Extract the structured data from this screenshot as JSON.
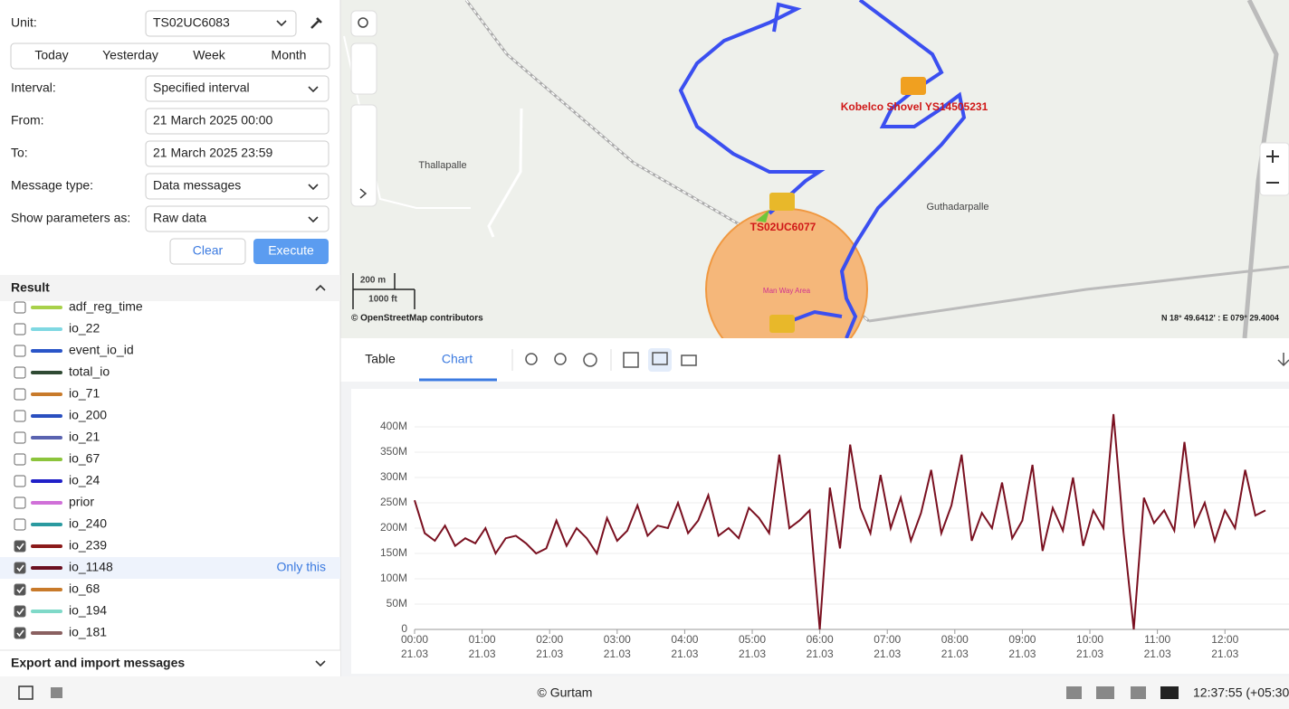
{
  "form": {
    "unit_label": "Unit:",
    "unit": "TS02UC6083",
    "periods": [
      "Today",
      "Yesterday",
      "Week",
      "Month"
    ],
    "fields": [
      {
        "label": "Interval:",
        "value": "Specified interval",
        "dropdown": true
      },
      {
        "label": "From:",
        "value": "21 March 2025 00:00",
        "dropdown": false
      },
      {
        "label": "To:",
        "value": "21 March 2025 23:59",
        "dropdown": false
      },
      {
        "label": "Message type:",
        "value": "Data messages",
        "dropdown": true
      },
      {
        "label": "Show parameters as:",
        "value": "Raw data",
        "dropdown": true
      }
    ],
    "clear": "Clear",
    "execute": "Execute"
  },
  "result": {
    "title": "Result",
    "params": [
      {
        "name": "adf_reg_time",
        "color": "#a8d14a",
        "checked": false
      },
      {
        "name": "io_22",
        "color": "#7fd8e2",
        "checked": false
      },
      {
        "name": "event_io_id",
        "color": "#2a55c8",
        "checked": false
      },
      {
        "name": "total_io",
        "color": "#2f4a33",
        "checked": false
      },
      {
        "name": "io_71",
        "color": "#c87a2a",
        "checked": false
      },
      {
        "name": "io_200",
        "color": "#2a4fc0",
        "checked": false
      },
      {
        "name": "io_21",
        "color": "#5a63b0",
        "checked": false
      },
      {
        "name": "io_67",
        "color": "#8cc43c",
        "checked": false
      },
      {
        "name": "io_24",
        "color": "#2020c8",
        "checked": false
      },
      {
        "name": "prior",
        "color": "#d070d8",
        "checked": false
      },
      {
        "name": "io_240",
        "color": "#2a9aa0",
        "checked": false
      },
      {
        "name": "io_239",
        "color": "#8b1a1a",
        "checked": true
      },
      {
        "name": "io_1148",
        "color": "#6b1020",
        "checked": true
      },
      {
        "name": "io_68",
        "color": "#c87a2a",
        "checked": true
      },
      {
        "name": "io_194",
        "color": "#7fd9c8",
        "checked": true
      },
      {
        "name": "io_181",
        "color": "#8a6060",
        "checked": true
      }
    ],
    "hover_row": 12,
    "only_this": "Only this",
    "export": "Export and import messages"
  },
  "map": {
    "places": [
      "Thallapalle",
      "Guthadarpalle"
    ],
    "units": [
      "Kobelco Shovel YS14505231",
      "TS02UC6077"
    ],
    "zone": "Man Way Area",
    "scale": [
      "200 m",
      "1000 ft"
    ],
    "attribution": "© OpenStreetMap contributors",
    "coords": "N 18° 49.6412' : E 079° 29.4004"
  },
  "tabs": [
    "Table",
    "Chart"
  ],
  "active_tab": 1,
  "chart_data": {
    "type": "line",
    "color": "#7a1020",
    "grid": true,
    "x": [
      0,
      0.15,
      0.3,
      0.45,
      0.6,
      0.75,
      0.9,
      1.05,
      1.2,
      1.35,
      1.5,
      1.65,
      1.8,
      1.95,
      2.1,
      2.25,
      2.4,
      2.55,
      2.7,
      2.85,
      3,
      3.15,
      3.3,
      3.45,
      3.6,
      3.75,
      3.9,
      4.05,
      4.2,
      4.35,
      4.5,
      4.65,
      4.8,
      4.95,
      5.1,
      5.25,
      5.4,
      5.55,
      5.7,
      5.85,
      6,
      6.15,
      6.3,
      6.45,
      6.6,
      6.75,
      6.9,
      7.05,
      7.2,
      7.35,
      7.5,
      7.65,
      7.8,
      7.95,
      8.1,
      8.25,
      8.4,
      8.55,
      8.7,
      8.85,
      9,
      9.15,
      9.3,
      9.45,
      9.6,
      9.75,
      9.9,
      10.05,
      10.2,
      10.35,
      10.5,
      10.65,
      10.8,
      10.95,
      11.1,
      11.25,
      11.4,
      11.55,
      11.7,
      11.85,
      12,
      12.15,
      12.3,
      12.45,
      12.6
    ],
    "values": [
      255,
      190,
      175,
      205,
      165,
      180,
      170,
      200,
      150,
      180,
      185,
      170,
      150,
      160,
      215,
      165,
      200,
      180,
      150,
      220,
      175,
      195,
      245,
      185,
      205,
      200,
      250,
      190,
      215,
      265,
      185,
      200,
      180,
      240,
      220,
      190,
      345,
      200,
      215,
      235,
      0,
      280,
      160,
      365,
      240,
      190,
      305,
      200,
      260,
      175,
      230,
      315,
      190,
      245,
      345,
      175,
      230,
      200,
      290,
      180,
      215,
      325,
      155,
      240,
      195,
      300,
      165,
      235,
      200,
      425,
      190,
      0,
      260,
      210,
      235,
      195,
      370,
      205,
      250,
      175,
      235,
      200,
      315,
      225,
      235
    ],
    "xlim": [
      0,
      12.6
    ],
    "ylim": [
      0,
      400
    ],
    "yticks": [
      0,
      {
        "value": 50,
        "label": "50M"
      },
      {
        "value": 100,
        "label": "100M"
      },
      {
        "value": 150,
        "label": "150M"
      },
      {
        "value": 200,
        "label": "200M"
      },
      {
        "value": 250,
        "label": "250M"
      },
      {
        "value": 300,
        "label": "300M"
      },
      {
        "value": 350,
        "label": "350M"
      },
      {
        "value": 400,
        "label": "400M"
      }
    ],
    "xticks": [
      {
        "value": 0,
        "label": "00:00",
        "date": "21.03"
      },
      {
        "value": 1,
        "label": "01:00",
        "date": "21.03"
      },
      {
        "value": 2,
        "label": "02:00",
        "date": "21.03"
      },
      {
        "value": 3,
        "label": "03:00",
        "date": "21.03"
      },
      {
        "value": 4,
        "label": "04:00",
        "date": "21.03"
      },
      {
        "value": 5,
        "label": "05:00",
        "date": "21.03"
      },
      {
        "value": 6,
        "label": "06:00",
        "date": "21.03"
      },
      {
        "value": 7,
        "label": "07:00",
        "date": "21.03"
      },
      {
        "value": 8,
        "label": "08:00",
        "date": "21.03"
      },
      {
        "value": 9,
        "label": "09:00",
        "date": "21.03"
      },
      {
        "value": 10,
        "label": "10:00",
        "date": "21.03"
      },
      {
        "value": 11,
        "label": "11:00",
        "date": "21.03"
      },
      {
        "value": 12,
        "label": "12:00",
        "date": "21.03"
      }
    ]
  },
  "footer": {
    "copyright": "© Gurtam",
    "time": "12:37:55 (+05:30"
  }
}
